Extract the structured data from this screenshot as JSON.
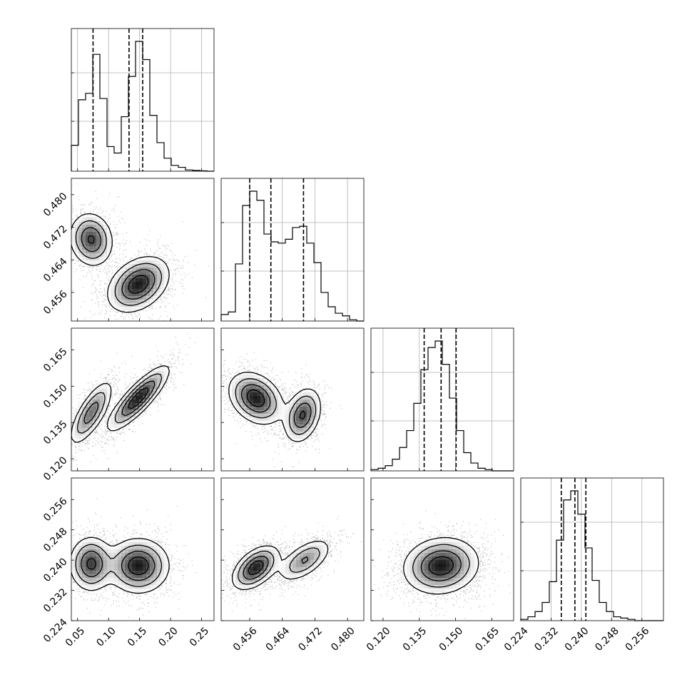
{
  "figure": {
    "type": "corner",
    "variables": [
      {
        "range": [
          0.04,
          0.27
        ],
        "ticks": [
          0.05,
          0.1,
          0.15,
          0.2,
          0.25
        ],
        "tick_labels": [
          "0.05",
          "0.10",
          "0.15",
          "0.20",
          "0.25"
        ],
        "quantiles": [
          0.075,
          0.133,
          0.155
        ]
      },
      {
        "range": [
          0.449,
          0.484
        ],
        "ticks": [
          0.456,
          0.464,
          0.472,
          0.48
        ],
        "tick_labels": [
          "0.456",
          "0.464",
          "0.472",
          "0.480"
        ],
        "quantiles": [
          0.456,
          0.4612,
          0.4692
        ]
      },
      {
        "range": [
          0.115,
          0.174
        ],
        "ticks": [
          0.12,
          0.135,
          0.15,
          0.165
        ],
        "tick_labels": [
          "0.120",
          "0.135",
          "0.150",
          "0.165"
        ],
        "quantiles": [
          0.137,
          0.144,
          0.1502
        ]
      },
      {
        "range": [
          0.224,
          0.2617
        ],
        "ticks": [
          0.224,
          0.232,
          0.24,
          0.248,
          0.256
        ],
        "tick_labels": [
          "0.224",
          "0.232",
          "0.240",
          "0.248",
          "0.256"
        ],
        "quantiles": [
          0.2347,
          0.2383,
          0.2412
        ]
      }
    ]
  },
  "chart_data": {
    "type": "corner",
    "histograms": [
      {
        "variable": 0,
        "bins": [
          0.04,
          0.0515,
          0.063,
          0.0745,
          0.086,
          0.0975,
          0.109,
          0.1205,
          0.132,
          0.1435,
          0.155,
          0.1665,
          0.178,
          0.1895,
          0.201,
          0.2125,
          0.224,
          0.2355,
          0.247,
          0.2585,
          0.27
        ],
        "counts": [
          0.2,
          0.55,
          0.6,
          0.9,
          0.56,
          0.19,
          0.14,
          0.42,
          0.73,
          1.0,
          0.86,
          0.43,
          0.22,
          0.1,
          0.045,
          0.03,
          0.01,
          0.006,
          0.003,
          0.0
        ]
      },
      {
        "variable": 1,
        "bins": [
          0.449,
          0.45075,
          0.4525,
          0.45425,
          0.456,
          0.45775,
          0.4595,
          0.46125,
          0.463,
          0.46475,
          0.4665,
          0.46825,
          0.47,
          0.47175,
          0.4735,
          0.47525,
          0.477,
          0.47875,
          0.4805,
          0.48225,
          0.484
        ],
        "counts": [
          0.05,
          0.07,
          0.44,
          0.89,
          1.0,
          0.93,
          0.67,
          0.61,
          0.6,
          0.63,
          0.72,
          0.73,
          0.6,
          0.45,
          0.22,
          0.11,
          0.06,
          0.04,
          0.01,
          0.0
        ]
      },
      {
        "variable": 2,
        "bins": [
          0.115,
          0.11795,
          0.1209,
          0.12385,
          0.1268,
          0.12975,
          0.1327,
          0.13565,
          0.1386,
          0.14155,
          0.1445,
          0.14745,
          0.1504,
          0.15335,
          0.1563,
          0.15925,
          0.1622,
          0.16515,
          0.1681,
          0.17105,
          0.174
        ],
        "counts": [
          0.01,
          0.02,
          0.04,
          0.09,
          0.18,
          0.31,
          0.52,
          0.78,
          0.95,
          1.0,
          0.82,
          0.56,
          0.31,
          0.14,
          0.06,
          0.02,
          0.01,
          0.0,
          0.0,
          0.0
        ]
      },
      {
        "variable": 3,
        "bins": [
          0.224,
          0.225885,
          0.22777,
          0.229655,
          0.23154,
          0.233425,
          0.23531,
          0.237195,
          0.23908,
          0.240965,
          0.24285,
          0.244735,
          0.24662,
          0.248505,
          0.25039,
          0.252275,
          0.25416,
          0.256045,
          0.25793,
          0.259815,
          0.2617
        ],
        "counts": [
          0.01,
          0.03,
          0.07,
          0.14,
          0.3,
          0.62,
          0.93,
          1.0,
          0.82,
          0.56,
          0.31,
          0.14,
          0.07,
          0.03,
          0.02,
          0.01,
          0.0,
          0.0,
          0.0,
          0.0
        ]
      }
    ],
    "density_modes": [
      {
        "pair": [
          1,
          0
        ],
        "modes": [
          {
            "x": 0.072,
            "y": 0.469,
            "sx": 0.017,
            "sy": 0.0032,
            "rho": -0.1,
            "w": 0.38
          },
          {
            "x": 0.148,
            "y": 0.458,
            "sx": 0.024,
            "sy": 0.0033,
            "rho": 0.35,
            "w": 0.62
          }
        ]
      },
      {
        "pair": [
          2,
          0
        ],
        "modes": [
          {
            "x": 0.072,
            "y": 0.139,
            "sx": 0.017,
            "sy": 0.0065,
            "rho": 0.75,
            "w": 0.38
          },
          {
            "x": 0.148,
            "y": 0.145,
            "sx": 0.024,
            "sy": 0.0065,
            "rho": 0.85,
            "w": 0.62
          }
        ]
      },
      {
        "pair": [
          2,
          1
        ],
        "modes": [
          {
            "x": 0.4575,
            "y": 0.145,
            "sx": 0.0032,
            "sy": 0.0052,
            "rho": -0.3,
            "w": 0.62
          },
          {
            "x": 0.469,
            "y": 0.138,
            "sx": 0.0022,
            "sy": 0.0055,
            "rho": 0.3,
            "w": 0.38
          }
        ]
      },
      {
        "pair": [
          3,
          0
        ],
        "modes": [
          {
            "x": 0.072,
            "y": 0.239,
            "sx": 0.017,
            "sy": 0.0035,
            "rho": 0.0,
            "w": 0.38
          },
          {
            "x": 0.148,
            "y": 0.2385,
            "sx": 0.024,
            "sy": 0.0035,
            "rho": 0.0,
            "w": 0.62
          }
        ]
      },
      {
        "pair": [
          3,
          1
        ],
        "modes": [
          {
            "x": 0.4575,
            "y": 0.238,
            "sx": 0.0028,
            "sy": 0.0028,
            "rho": 0.5,
            "w": 0.62
          },
          {
            "x": 0.4695,
            "y": 0.24,
            "sx": 0.0032,
            "sy": 0.0028,
            "rho": 0.6,
            "w": 0.38
          }
        ]
      },
      {
        "pair": [
          3,
          2
        ],
        "modes": [
          {
            "x": 0.144,
            "y": 0.2385,
            "sx": 0.0075,
            "sy": 0.0036,
            "rho": 0.1,
            "w": 1.0
          }
        ]
      }
    ],
    "grid": true
  }
}
